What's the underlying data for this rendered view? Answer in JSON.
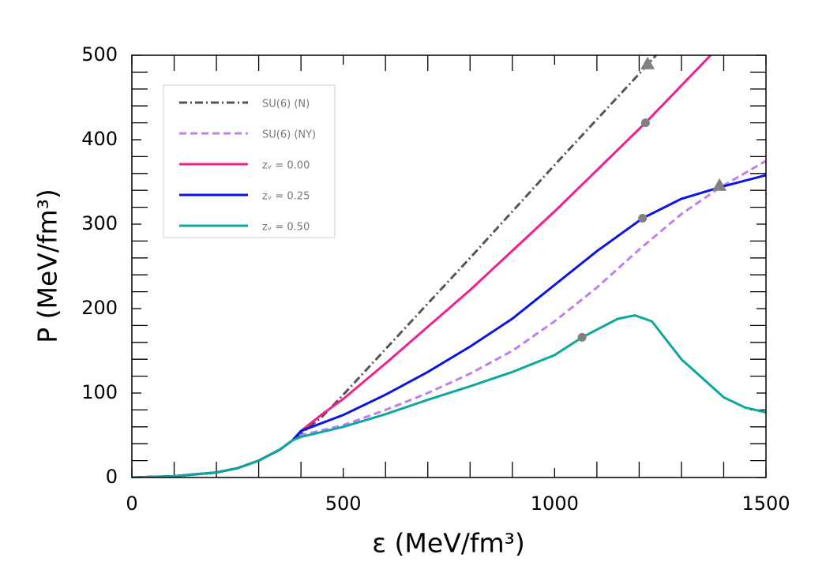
{
  "chart_data": {
    "type": "line",
    "xlabel": "ε (MeV/fm³)",
    "ylabel": "P (MeV/fm³)",
    "xlim": [
      0,
      1500
    ],
    "ylim": [
      0,
      500
    ],
    "xticks": [
      0,
      500,
      1000,
      1500
    ],
    "yticks": [
      0,
      100,
      200,
      300,
      400,
      500
    ],
    "xminorticks": [
      100,
      200,
      300,
      400,
      600,
      700,
      800,
      900,
      1100,
      1200,
      1300,
      1400
    ],
    "yminorticks": [
      20,
      40,
      60,
      80,
      120,
      140,
      160,
      180,
      220,
      240,
      260,
      280,
      320,
      340,
      360,
      380,
      420,
      440,
      460,
      480
    ],
    "legend": "upper left",
    "marker_color": "#808080",
    "series": [
      {
        "name": "SU(6) (N)",
        "color": "#555555",
        "dash": "dashdot",
        "x": [
          0,
          100,
          200,
          250,
          300,
          350,
          380,
          400,
          450,
          500,
          600,
          800,
          1000,
          1200,
          1240
        ],
        "values": [
          0,
          1.5,
          6,
          11,
          20,
          33,
          44,
          52,
          72,
          98,
          152,
          260,
          370,
          478,
          500
        ],
        "marker": {
          "x": 1220,
          "y": 490,
          "shape": "triangle"
        }
      },
      {
        "name": "SU(6) (NY)",
        "color": "#c07ef0",
        "dash": "dashed",
        "x": [
          0,
          100,
          200,
          250,
          300,
          350,
          380,
          400,
          500,
          600,
          700,
          800,
          900,
          1000,
          1100,
          1200,
          1300,
          1390,
          1500
        ],
        "values": [
          0,
          1.5,
          6,
          11,
          20,
          33,
          44,
          50,
          62,
          80,
          100,
          123,
          150,
          185,
          225,
          270,
          312,
          343,
          375
        ],
        "marker": {
          "x": 1390,
          "y": 346,
          "shape": "triangle"
        }
      },
      {
        "name": "zᵥ = 0.00",
        "color": "#f0208c",
        "dash": "solid",
        "x": [
          0,
          100,
          200,
          250,
          300,
          350,
          380,
          400,
          450,
          500,
          600,
          800,
          1000,
          1215,
          1369
        ],
        "values": [
          0,
          1.5,
          6,
          11,
          20,
          33,
          44,
          55,
          75,
          93,
          135,
          222,
          315,
          420,
          500
        ],
        "marker": {
          "x": 1215,
          "y": 420,
          "shape": "circle"
        }
      },
      {
        "name": "zᵥ = 0.25",
        "color": "#0a14e6",
        "dash": "solid",
        "x": [
          0,
          100,
          200,
          250,
          300,
          350,
          380,
          400,
          500,
          600,
          700,
          800,
          900,
          1000,
          1100,
          1208,
          1300,
          1400,
          1500
        ],
        "values": [
          0,
          1.5,
          6,
          11,
          20,
          33,
          44,
          55,
          74,
          98,
          125,
          155,
          188,
          228,
          268,
          307,
          330,
          345,
          358
        ],
        "marker": {
          "x": 1208,
          "y": 307,
          "shape": "circle"
        }
      },
      {
        "name": "zᵥ = 0.50",
        "color": "#0ca89a",
        "dash": "solid",
        "x": [
          0,
          100,
          200,
          250,
          300,
          350,
          380,
          400,
          500,
          600,
          700,
          800,
          900,
          1000,
          1065,
          1150,
          1190,
          1230,
          1300,
          1400,
          1450,
          1500
        ],
        "values": [
          0,
          1.5,
          6,
          11,
          20,
          33,
          44,
          48,
          60,
          75,
          92,
          108,
          125,
          145,
          166,
          188,
          192,
          185,
          140,
          95,
          83,
          77
        ],
        "marker": {
          "x": 1065,
          "y": 166,
          "shape": "circle"
        }
      }
    ]
  }
}
